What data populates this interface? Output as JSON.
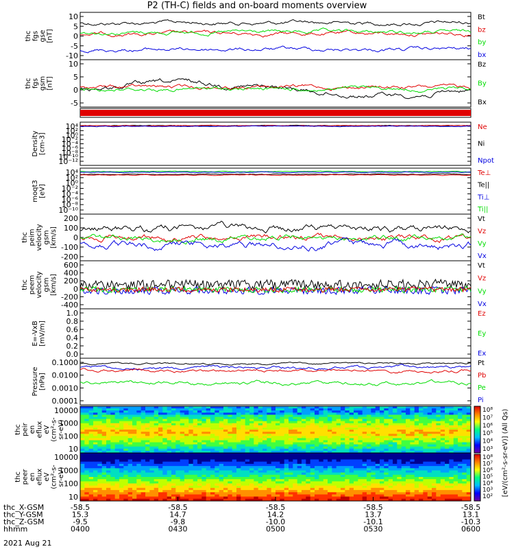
{
  "title": "P2 (TH-C) fields and on-board moments overview",
  "date": "2021 Aug 21",
  "colors": {
    "black": "#000000",
    "red": "#e00000",
    "green": "#00dd00",
    "blue": "#0000e0"
  },
  "chart_data": [
    {
      "type": "line",
      "id": "fgs",
      "ylabel": [
        "thc",
        "fgs",
        "gse",
        "[nT]"
      ],
      "ylim": [
        -10,
        10
      ],
      "yticks": [
        "10",
        "5",
        "0",
        "-5",
        "-10"
      ],
      "series": [
        {
          "name": "Bt",
          "color": "black"
        },
        {
          "name": "bz",
          "color": "red"
        },
        {
          "name": "by",
          "color": "green"
        },
        {
          "name": "bx",
          "color": "blue"
        }
      ]
    },
    {
      "type": "line",
      "id": "fgs-gsm",
      "ylabel": [
        "thc",
        "fgs",
        "gsm",
        "[nT]"
      ],
      "ylim": [
        -7,
        10
      ],
      "yticks": [
        "10",
        "5",
        "0",
        "-5"
      ],
      "series": [
        {
          "name": "Bz",
          "color": "black"
        },
        {
          "name": "By",
          "color": "green"
        },
        {
          "name": "Bx",
          "color": "black"
        }
      ]
    },
    {
      "type": "bar",
      "id": "status"
    },
    {
      "type": "line",
      "id": "density",
      "ylabel": [
        "Density",
        "[cm-3]"
      ],
      "log": true,
      "yticks": [
        "10⁴",
        "10²",
        "10⁰",
        "10⁻²",
        "10⁻⁴",
        "10⁻⁶",
        "10⁻⁸",
        "10⁻¹⁰",
        "10⁻¹²"
      ],
      "series": [
        {
          "name": "Ne",
          "color": "red"
        },
        {
          "name": "Ni",
          "color": "black"
        },
        {
          "name": "Npot",
          "color": "blue"
        }
      ]
    },
    {
      "type": "line",
      "id": "temp",
      "ylabel": [
        "moqt3",
        "[eV]"
      ],
      "log": true,
      "yticks": [
        "10⁴",
        "10²",
        "10⁰",
        "10⁻²",
        "10⁻⁴",
        "10⁻⁶",
        "10⁻⁸",
        "10⁻¹⁰"
      ],
      "series": [
        {
          "name": "Te⊥",
          "color": "red"
        },
        {
          "name": "Te||",
          "color": "black"
        },
        {
          "name": "Ti⊥",
          "color": "blue"
        },
        {
          "name": "Ti||",
          "color": "green"
        }
      ]
    },
    {
      "type": "line",
      "id": "peim",
      "ylabel": [
        "thc",
        "peim",
        "velocity",
        "gsm",
        "[km/s]"
      ],
      "ylim": [
        -250,
        200
      ],
      "yticks": [
        "200",
        "100",
        "0",
        "-100",
        "-200"
      ],
      "series": [
        {
          "name": "Vt",
          "color": "black"
        },
        {
          "name": "Vz",
          "color": "red"
        },
        {
          "name": "Vy",
          "color": "green"
        },
        {
          "name": "Vx",
          "color": "blue"
        }
      ]
    },
    {
      "type": "line",
      "id": "peem",
      "ylabel": [
        "thc",
        "peem",
        "velocity",
        "gsm",
        "[km/s]"
      ],
      "ylim": [
        -400,
        600
      ],
      "yticks": [
        "600",
        "400",
        "200",
        "0",
        "-200",
        "-400"
      ],
      "series": [
        {
          "name": "Vt",
          "color": "black"
        },
        {
          "name": "Vz",
          "color": "red"
        },
        {
          "name": "Vy",
          "color": "green"
        },
        {
          "name": "Vx",
          "color": "blue"
        }
      ]
    },
    {
      "type": "line",
      "id": "efield",
      "ylabel": [
        "E=-VxB",
        "[mV/m]"
      ],
      "ylim": [
        0,
        1.0
      ],
      "yticks": [
        "1.0",
        "0.8",
        "0.6",
        "0.4",
        "0.2",
        "0.0"
      ],
      "series": [
        {
          "name": "Ez",
          "color": "red"
        },
        {
          "name": "Ey",
          "color": "green"
        },
        {
          "name": "Ex",
          "color": "blue"
        }
      ]
    },
    {
      "type": "line",
      "id": "pressure",
      "ylabel": [
        "Pressure",
        "[nPa]"
      ],
      "log": true,
      "yticks": [
        "0.1000",
        "0.0100",
        "0.0010",
        "0.0001"
      ],
      "series": [
        {
          "name": "Pt",
          "color": "black"
        },
        {
          "name": "Pb",
          "color": "red"
        },
        {
          "name": "Pe",
          "color": "green"
        },
        {
          "name": "Pi",
          "color": "blue"
        }
      ]
    },
    {
      "type": "heatmap",
      "id": "peir",
      "ylabel": [
        "thc",
        "peir",
        "en",
        "eflux",
        "eV",
        "(cm²-s-",
        "sr-eV)"
      ],
      "log": true,
      "yticks": [
        "10000",
        "1000",
        "100",
        "10"
      ]
    },
    {
      "type": "heatmap",
      "id": "peer",
      "ylabel": [
        "thc",
        "peer",
        "en",
        "eflux",
        "eV",
        "(cm²-s-",
        "sr-eV)"
      ],
      "log": true,
      "yticks": [
        "10000",
        "1000",
        "100",
        "10"
      ]
    }
  ],
  "colorbar": {
    "label": "[eV/(cm²-s-sr-eV)] (All Qs)",
    "ticks_top": [
      "10⁸",
      "10⁷",
      "10⁶",
      "10⁵",
      "10⁴",
      "10³"
    ],
    "ticks_bottom": [
      "10⁸",
      "10⁷",
      "10⁶",
      "10⁵",
      "10⁴",
      "10³",
      "10²"
    ]
  },
  "xaxis": {
    "row_labels": [
      "thc_X-GSM",
      "thc_Y-GSM",
      "thc_Z-GSM",
      "hhmm"
    ],
    "columns": [
      {
        "x": "-58.5",
        "y": "15.3",
        "z": "-9.5",
        "t": "0400"
      },
      {
        "x": "-58.5",
        "y": "14.7",
        "z": "-9.8",
        "t": "0430"
      },
      {
        "x": "-58.5",
        "y": "14.2",
        "z": "-10.0",
        "t": "0500"
      },
      {
        "x": "-58.5",
        "y": "13.7",
        "z": "-10.1",
        "t": "0530"
      },
      {
        "x": "-58.5",
        "y": "13.1",
        "z": "-10.3",
        "t": "0600"
      }
    ]
  }
}
